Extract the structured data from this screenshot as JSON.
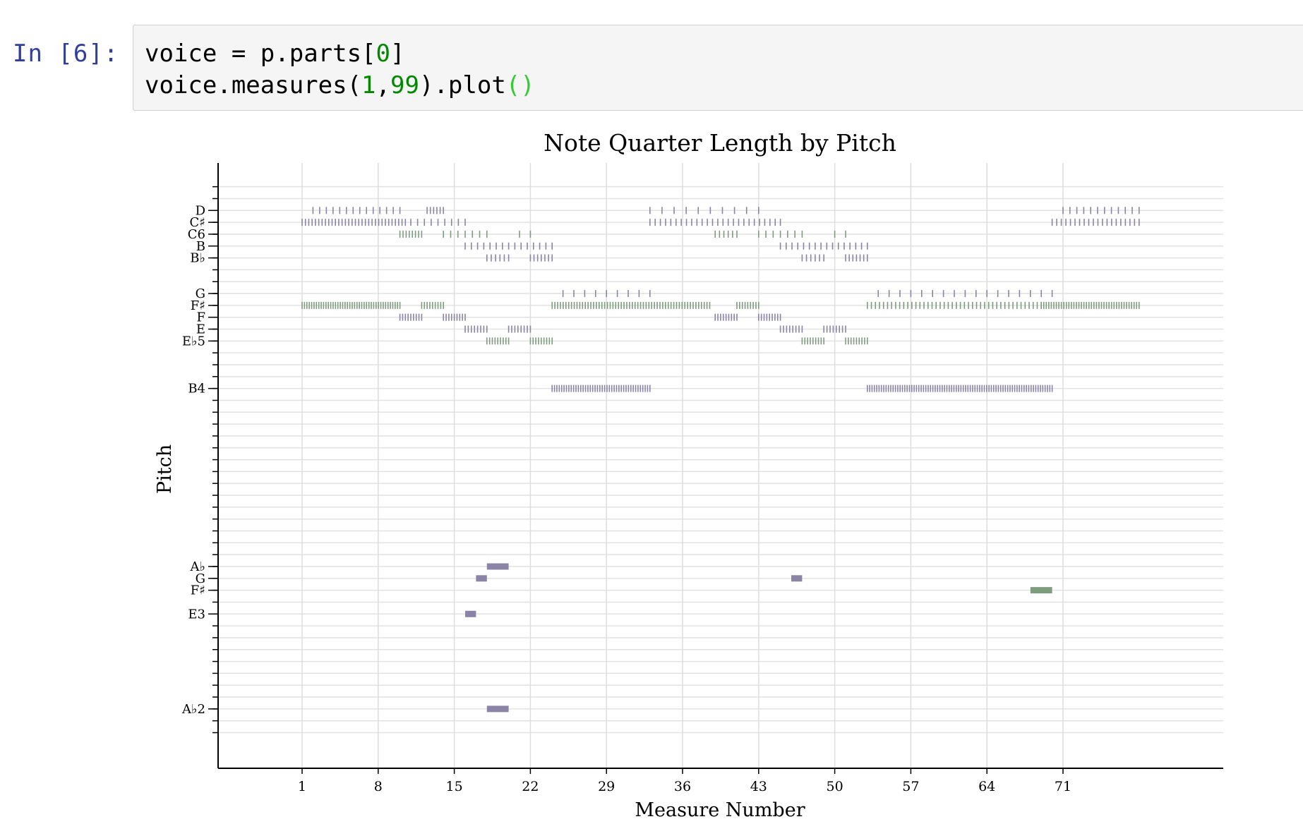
{
  "notebook": {
    "prompt": "In [6]:",
    "code": {
      "line1": {
        "var": "voice",
        "op": " = ",
        "expr": "p.parts[",
        "num": "0",
        "close": "]"
      },
      "line2": {
        "pre": "voice.measures(",
        "n1": "1",
        "comma": ",",
        "n2": "99",
        "post": ").plot",
        "paren": "()"
      }
    }
  },
  "chart_data": {
    "type": "scatter",
    "title": "Note Quarter Length by Pitch",
    "xlabel": "Measure Number",
    "ylabel": "Pitch",
    "xticks": [
      "1",
      "8",
      "15",
      "22",
      "29",
      "36",
      "43",
      "50",
      "57",
      "64",
      "71"
    ],
    "xlim": [
      -6,
      87
    ],
    "grid": true,
    "y_tick_labels": [
      {
        "label": "D",
        "midi": 74
      },
      {
        "label": "C♯",
        "midi": 73
      },
      {
        "label": "C6",
        "midi": 72
      },
      {
        "label": "B",
        "midi": 71
      },
      {
        "label": "B♭",
        "midi": 70
      },
      {
        "label": "G",
        "midi": 67
      },
      {
        "label": "F♯",
        "midi": 66
      },
      {
        "label": "F",
        "midi": 65
      },
      {
        "label": "E",
        "midi": 64
      },
      {
        "label": "E♭5",
        "midi": 63
      },
      {
        "label": "B4",
        "midi": 59
      },
      {
        "label": "A♭",
        "midi": 44
      },
      {
        "label": "G",
        "midi": 43
      },
      {
        "label": "F♯",
        "midi": 42
      },
      {
        "label": "E3",
        "midi": 40
      },
      {
        "label": "A♭2",
        "midi": 32
      }
    ],
    "ylim": [
      27,
      78
    ],
    "colors": {
      "purple": "#8c84a6",
      "green": "#7e9c7e"
    },
    "series": [
      {
        "pitch": "D",
        "midi": 74,
        "color": "purple",
        "segments": [
          [
            2,
            10,
            14
          ],
          [
            12.5,
            14,
            6
          ],
          [
            33,
            43,
            10
          ],
          [
            71,
            78,
            12
          ]
        ]
      },
      {
        "pitch": "C♯",
        "midi": 73,
        "color": "purple",
        "segments": [
          [
            1,
            10.5,
            32
          ],
          [
            11,
            16,
            9
          ],
          [
            33,
            45,
            26
          ],
          [
            70,
            78,
            20
          ]
        ]
      },
      {
        "pitch": "C6",
        "midi": 72,
        "color": "green",
        "segments": [
          [
            10,
            12,
            8
          ],
          [
            14,
            18,
            7
          ],
          [
            21,
            22,
            2
          ],
          [
            39,
            41,
            6
          ],
          [
            43,
            47,
            7
          ],
          [
            50,
            51,
            2
          ]
        ]
      },
      {
        "pitch": "B",
        "midi": 71,
        "color": "purple",
        "segments": [
          [
            16,
            24,
            15
          ],
          [
            45,
            53,
            16
          ]
        ]
      },
      {
        "pitch": "B♭",
        "midi": 70,
        "color": "purple",
        "segments": [
          [
            18,
            20,
            6
          ],
          [
            22,
            24,
            7
          ],
          [
            47,
            49,
            6
          ],
          [
            51,
            53,
            7
          ]
        ]
      },
      {
        "pitch": "G",
        "midi": 67,
        "color": "purple",
        "segments": [
          [
            25,
            33,
            9
          ],
          [
            54,
            70,
            17
          ]
        ]
      },
      {
        "pitch": "F♯",
        "midi": 66,
        "color": "green",
        "segments": [
          [
            1,
            10,
            42
          ],
          [
            12,
            14,
            9
          ],
          [
            24,
            38.5,
            58
          ],
          [
            41,
            43,
            9
          ],
          [
            53,
            69,
            44
          ],
          [
            69,
            78,
            40
          ]
        ]
      },
      {
        "pitch": "F",
        "midi": 65,
        "color": "purple",
        "segments": [
          [
            10,
            12,
            9
          ],
          [
            14,
            16,
            9
          ],
          [
            39,
            41,
            9
          ],
          [
            43,
            45,
            9
          ]
        ]
      },
      {
        "pitch": "E",
        "midi": 64,
        "color": "purple",
        "segments": [
          [
            16,
            18,
            8
          ],
          [
            20,
            22,
            8
          ],
          [
            45,
            47,
            8
          ],
          [
            49,
            51,
            8
          ]
        ]
      },
      {
        "pitch": "E♭5",
        "midi": 63,
        "color": "green",
        "segments": [
          [
            18,
            20,
            9
          ],
          [
            22,
            24,
            9
          ],
          [
            47,
            49,
            9
          ],
          [
            51,
            53,
            9
          ]
        ]
      },
      {
        "pitch": "B4",
        "midi": 59,
        "color": "purple",
        "segments": [
          [
            24,
            33,
            42
          ],
          [
            53,
            70,
            80
          ]
        ]
      },
      {
        "bars": true,
        "pitch": "A♭",
        "midi": 44,
        "color": "purple",
        "notes": [
          [
            18,
            2
          ]
        ]
      },
      {
        "bars": true,
        "pitch": "G",
        "midi": 43,
        "color": "purple",
        "notes": [
          [
            17,
            1
          ],
          [
            46,
            1
          ]
        ]
      },
      {
        "bars": true,
        "pitch": "F♯",
        "midi": 42,
        "color": "green",
        "notes": [
          [
            68,
            2
          ]
        ]
      },
      {
        "bars": true,
        "pitch": "E3",
        "midi": 40,
        "color": "purple",
        "notes": [
          [
            16,
            1
          ]
        ]
      },
      {
        "bars": true,
        "pitch": "A♭2",
        "midi": 32,
        "color": "purple",
        "notes": [
          [
            18,
            2
          ]
        ]
      }
    ]
  }
}
